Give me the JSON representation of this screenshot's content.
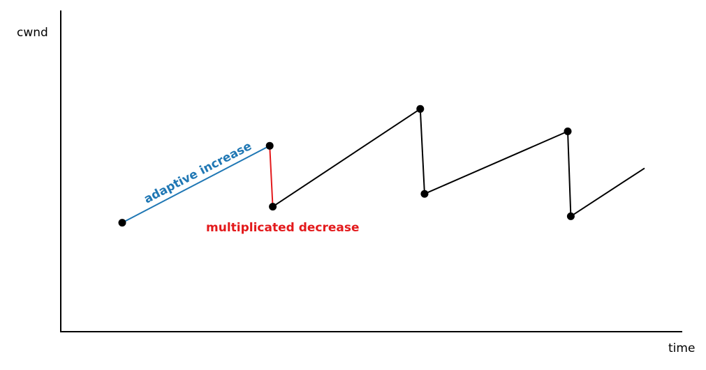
{
  "chart_data": {
    "type": "line",
    "title": "",
    "xlabel": "time",
    "ylabel": "cwnd",
    "grid": false,
    "legend": "none",
    "xlim": [
      0,
      10
    ],
    "ylim": [
      0,
      10
    ],
    "points": [
      {
        "x": 1.0,
        "y": 3.4
      },
      {
        "x": 3.4,
        "y": 5.8
      },
      {
        "x": 3.45,
        "y": 3.9
      },
      {
        "x": 5.85,
        "y": 6.95
      },
      {
        "x": 5.92,
        "y": 4.3
      },
      {
        "x": 8.25,
        "y": 6.25
      },
      {
        "x": 8.3,
        "y": 3.6
      },
      {
        "x": 9.5,
        "y": 5.1
      }
    ],
    "marked_points": [
      0,
      1,
      2,
      3,
      4,
      5,
      6
    ],
    "segments": [
      {
        "from": 0,
        "to": 1,
        "role": "increase",
        "color": "#1f77b4"
      },
      {
        "from": 1,
        "to": 2,
        "role": "decrease",
        "color": "#e31a1c"
      },
      {
        "from": 2,
        "to": 3,
        "role": "other",
        "color": "#000000"
      },
      {
        "from": 3,
        "to": 4,
        "role": "other",
        "color": "#000000"
      },
      {
        "from": 4,
        "to": 5,
        "role": "other",
        "color": "#000000"
      },
      {
        "from": 5,
        "to": 6,
        "role": "other",
        "color": "#000000"
      },
      {
        "from": 6,
        "to": 7,
        "role": "other",
        "color": "#000000"
      }
    ],
    "annotations": {
      "increase_text": "adaptive increase",
      "increase_color": "#1f77b4",
      "decrease_text": "multiplicated decrease",
      "decrease_color": "#e31a1c"
    },
    "axis_color": "#000000",
    "marker_color": "#000000"
  }
}
